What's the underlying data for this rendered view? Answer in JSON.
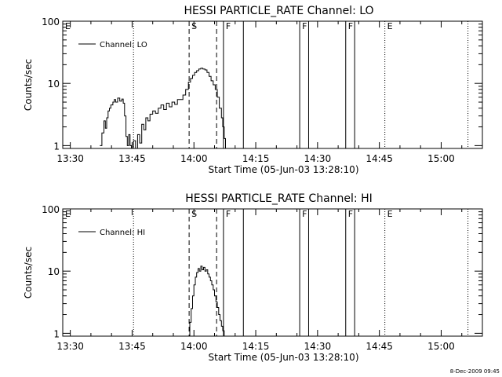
{
  "footer": {
    "timestamp": "8-Dec-2009 09:45"
  },
  "chart_data": [
    {
      "type": "line",
      "title": "HESSI PARTICLE_RATE Channel: LO",
      "xlabel": "Start Time (05-Jun-03 13:28:10)",
      "ylabel": "Counts/sec",
      "yscale": "log",
      "ylim": [
        0.9,
        100
      ],
      "xlim": [
        "13:28:10",
        "15:10:00"
      ],
      "xticks": [
        "13:30",
        "13:45",
        "14:00",
        "14:15",
        "14:30",
        "14:45",
        "15:00"
      ],
      "yticks": [
        "1",
        "10",
        "100"
      ],
      "legend": {
        "position": "top-left",
        "entries": [
          "Channel: LO"
        ]
      },
      "series": [
        {
          "name": "Channel: LO",
          "x": [
            "13:37:10",
            "13:37:40",
            "13:38:10",
            "13:38:30",
            "13:38:50",
            "13:39:10",
            "13:39:30",
            "13:39:50",
            "13:40:20",
            "13:40:40",
            "13:41:00",
            "13:41:30",
            "13:42:00",
            "13:42:30",
            "13:42:50",
            "13:43:10",
            "13:43:30",
            "13:43:50",
            "13:44:10",
            "13:44:30",
            "13:44:50",
            "13:45:20",
            "13:45:50",
            "13:46:20",
            "13:46:50",
            "13:47:20",
            "13:47:50",
            "13:48:20",
            "13:48:50",
            "13:49:20",
            "13:50:00",
            "13:50:40",
            "13:51:20",
            "13:52:00",
            "13:52:40",
            "13:53:20",
            "13:54:00",
            "13:54:40",
            "13:55:20",
            "13:56:00",
            "13:56:40",
            "13:57:20",
            "13:58:00",
            "13:58:40",
            "13:59:10",
            "13:59:40",
            "14:00:10",
            "14:00:40",
            "14:01:10",
            "14:01:40",
            "14:02:10",
            "14:02:40",
            "14:03:10",
            "14:03:40",
            "14:04:10",
            "14:04:40",
            "14:05:10",
            "14:05:40",
            "14:06:10",
            "14:06:40",
            "14:07:00",
            "14:07:20",
            "14:07:40"
          ],
          "values": [
            1.0,
            1.6,
            2.5,
            1.9,
            2.8,
            3.6,
            4.0,
            4.5,
            5.0,
            5.5,
            5.0,
            5.8,
            5.2,
            5.6,
            4.8,
            3.0,
            1.4,
            1.0,
            1.5,
            1.0,
            0.9,
            1.2,
            0.9,
            1.5,
            1.1,
            2.2,
            1.8,
            2.8,
            2.5,
            3.2,
            3.6,
            3.3,
            4.0,
            4.5,
            3.8,
            4.8,
            4.2,
            5.0,
            4.6,
            5.5,
            5.5,
            6.5,
            8.0,
            10.5,
            12.0,
            13.5,
            15.0,
            16.0,
            17.0,
            17.5,
            17.0,
            16.5,
            15.0,
            13.0,
            11.0,
            9.5,
            8.0,
            6.0,
            4.0,
            2.8,
            2.0,
            1.3,
            0.9
          ]
        }
      ],
      "annotations": [
        {
          "label": "E",
          "time": "13:28:10"
        },
        {
          "label": "S",
          "time": "13:58:50"
        },
        {
          "label": "F",
          "time": "14:07:10"
        },
        {
          "label": "F",
          "time": "14:25:40"
        },
        {
          "label": "F",
          "time": "14:36:50"
        },
        {
          "label": "E",
          "time": "14:46:20"
        }
      ],
      "vertical_lines": {
        "dotted": [
          "13:45:20",
          "14:46:20",
          "15:06:30"
        ],
        "dashed": [
          "13:58:50",
          "14:05:30"
        ],
        "solid": [
          "14:07:10",
          "14:12:00",
          "14:25:40",
          "14:27:50",
          "14:36:50",
          "14:39:00"
        ]
      }
    },
    {
      "type": "line",
      "title": "HESSI PARTICLE_RATE Channel: HI",
      "xlabel": "Start Time (05-Jun-03 13:28:10)",
      "ylabel": "Counts/sec",
      "yscale": "log",
      "ylim": [
        0.9,
        100
      ],
      "xlim": [
        "13:28:10",
        "15:10:00"
      ],
      "xticks": [
        "13:30",
        "13:45",
        "14:00",
        "14:15",
        "14:30",
        "14:45",
        "15:00"
      ],
      "yticks": [
        "1",
        "10",
        "100"
      ],
      "legend": {
        "position": "top-left",
        "entries": [
          "Channel: HI"
        ]
      },
      "series": [
        {
          "name": "Channel: HI",
          "x": [
            "13:58:40",
            "13:59:00",
            "13:59:20",
            "13:59:40",
            "14:00:00",
            "14:00:20",
            "14:00:40",
            "14:01:00",
            "14:01:20",
            "14:01:40",
            "14:02:00",
            "14:02:20",
            "14:02:40",
            "14:03:00",
            "14:03:20",
            "14:03:40",
            "14:04:00",
            "14:04:20",
            "14:04:40",
            "14:05:00",
            "14:05:20",
            "14:05:40",
            "14:06:00",
            "14:06:20",
            "14:06:40",
            "14:07:00",
            "14:07:20"
          ],
          "values": [
            0.9,
            1.5,
            2.5,
            4.0,
            6.0,
            8.0,
            9.5,
            11.0,
            10.0,
            12.0,
            10.5,
            11.5,
            10.0,
            10.5,
            9.0,
            8.0,
            7.0,
            6.0,
            5.0,
            4.0,
            3.2,
            2.6,
            2.0,
            1.6,
            1.3,
            1.1,
            0.9
          ]
        }
      ],
      "annotations": [
        {
          "label": "E",
          "time": "13:28:10"
        },
        {
          "label": "S",
          "time": "13:58:50"
        },
        {
          "label": "F",
          "time": "14:07:10"
        },
        {
          "label": "F",
          "time": "14:25:40"
        },
        {
          "label": "F",
          "time": "14:36:50"
        },
        {
          "label": "E",
          "time": "14:46:20"
        }
      ],
      "vertical_lines": {
        "dotted": [
          "13:45:20",
          "14:46:20",
          "15:06:30"
        ],
        "dashed": [
          "13:58:50",
          "14:05:30"
        ],
        "solid": [
          "14:07:10",
          "14:12:00",
          "14:25:40",
          "14:27:50",
          "14:36:50",
          "14:39:00"
        ]
      }
    }
  ]
}
